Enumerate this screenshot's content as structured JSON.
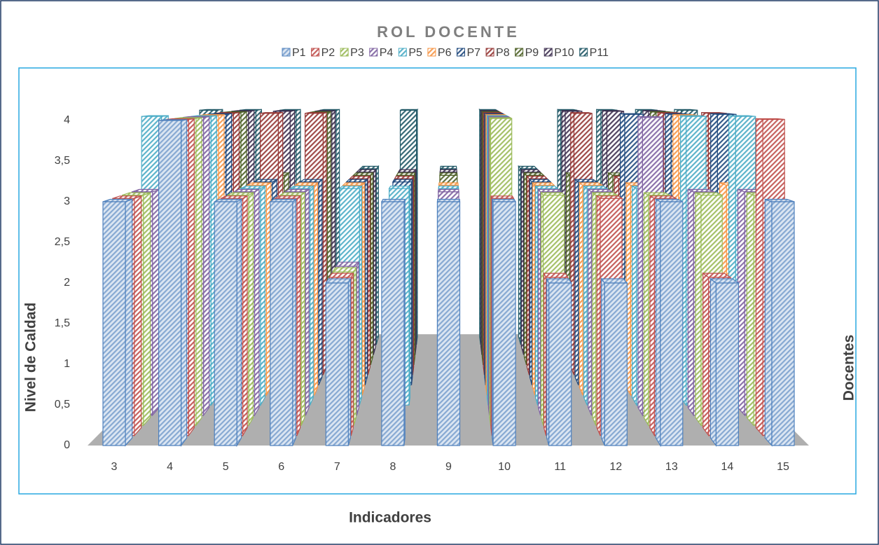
{
  "chart_data": {
    "type": "bar3d",
    "title": "ROL DOCENTE",
    "ylabel": "Nivel de Caldad",
    "xlabel": "Indicadores",
    "zlabel": "Docentes",
    "categories": [
      "3",
      "4",
      "5",
      "6",
      "7",
      "8",
      "9",
      "10",
      "11",
      "12",
      "13",
      "14",
      "15"
    ],
    "ylim": [
      0,
      4
    ],
    "yticks": [
      0,
      {
        "value": 0.5,
        "label": "0,5"
      },
      1,
      {
        "value": 1.5,
        "label": "1,5"
      },
      2,
      {
        "value": 2.5,
        "label": "2,5"
      },
      3,
      {
        "value": 3.5,
        "label": "3,5"
      },
      4
    ],
    "legend": "top",
    "series": [
      {
        "name": "P1",
        "color": "#4f81bd",
        "values": [
          3,
          4,
          3,
          3,
          2,
          3,
          3,
          3,
          2,
          2,
          3,
          2,
          3
        ]
      },
      {
        "name": "P2",
        "color": "#c0504d",
        "values": [
          3,
          4,
          3,
          3,
          2,
          null,
          null,
          3,
          2,
          3,
          3,
          2,
          4
        ]
      },
      {
        "name": "P3",
        "color": "#9bbb59",
        "values": [
          3,
          4,
          3,
          3,
          2,
          null,
          null,
          4,
          3,
          3,
          3,
          3,
          3
        ]
      },
      {
        "name": "P4",
        "color": "#8064a2",
        "values": [
          3,
          4,
          3,
          3,
          2,
          null,
          3,
          4,
          3,
          3,
          4,
          3,
          3
        ]
      },
      {
        "name": "P5",
        "color": "#4bacc6",
        "values": [
          4,
          4,
          3,
          3,
          3,
          3,
          3,
          4,
          3,
          3,
          3,
          4,
          4
        ]
      },
      {
        "name": "P6",
        "color": "#f79646",
        "values": [
          3,
          4,
          3,
          3,
          3,
          null,
          3,
          4,
          3,
          3,
          3,
          4,
          3
        ]
      },
      {
        "name": "P7",
        "color": "#1f497d",
        "values": [
          3,
          4,
          3,
          3,
          3,
          3,
          null,
          4,
          3,
          3,
          4,
          4,
          4
        ]
      },
      {
        "name": "P8",
        "color": "#953735",
        "values": [
          3,
          4,
          4,
          4,
          3,
          3,
          null,
          4,
          3,
          4,
          3,
          4,
          4
        ]
      },
      {
        "name": "P9",
        "color": "#4f6228",
        "values": [
          3,
          4,
          3,
          4,
          3,
          3,
          3,
          4,
          3,
          3,
          3,
          4,
          3
        ]
      },
      {
        "name": "P10",
        "color": "#3f3151",
        "values": [
          3,
          4,
          4,
          4,
          3,
          3,
          3,
          4,
          3,
          4,
          4,
          4,
          3
        ]
      },
      {
        "name": "P11",
        "color": "#215967",
        "values": [
          4,
          4,
          4,
          4,
          3,
          4,
          3,
          4,
          3,
          4,
          4,
          4,
          4
        ]
      }
    ]
  }
}
